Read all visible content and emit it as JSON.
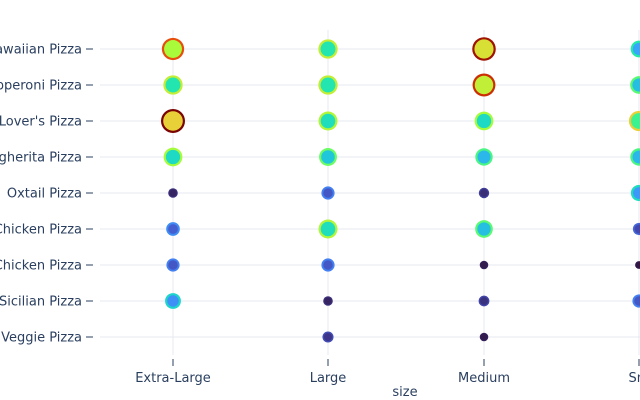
{
  "chart_data": {
    "type": "scatter",
    "xlabel": "size",
    "ylabel": "",
    "title": "",
    "x_categories": [
      "Extra-Large",
      "Large",
      "Medium",
      "Small"
    ],
    "y_tick_labels": [
      "awaiian Pizza",
      "pperoni Pizza",
      "Lover's Pizza",
      "gherita Pizza",
      "Oxtail Pizza",
      "Chicken Pizza",
      "Chicken Pizza",
      "Sicilian Pizza",
      "Veggie Pizza"
    ],
    "x_tick_labels": [
      "Extra-Large",
      "Large",
      "Medium",
      "Sm"
    ],
    "grid": true,
    "legend": "none",
    "points": [
      {
        "row": 0,
        "col": 0,
        "value": 0.82
      },
      {
        "row": 0,
        "col": 1,
        "value": 0.55
      },
      {
        "row": 0,
        "col": 2,
        "value": 0.95
      },
      {
        "row": 0,
        "col": 3,
        "value": 0.35
      },
      {
        "row": 1,
        "col": 0,
        "value": 0.55
      },
      {
        "row": 1,
        "col": 1,
        "value": 0.55
      },
      {
        "row": 1,
        "col": 2,
        "value": 0.88
      },
      {
        "row": 1,
        "col": 3,
        "value": 0.42
      },
      {
        "row": 2,
        "col": 0,
        "value": 1.0
      },
      {
        "row": 2,
        "col": 1,
        "value": 0.52
      },
      {
        "row": 2,
        "col": 2,
        "value": 0.5
      },
      {
        "row": 2,
        "col": 3,
        "value": 0.62
      },
      {
        "row": 3,
        "col": 0,
        "value": 0.5
      },
      {
        "row": 3,
        "col": 1,
        "value": 0.44
      },
      {
        "row": 3,
        "col": 2,
        "value": 0.4
      },
      {
        "row": 3,
        "col": 3,
        "value": 0.4
      },
      {
        "row": 4,
        "col": 0,
        "value": 0.04
      },
      {
        "row": 4,
        "col": 1,
        "value": 0.16
      },
      {
        "row": 4,
        "col": 2,
        "value": 0.06
      },
      {
        "row": 4,
        "col": 3,
        "value": 0.32
      },
      {
        "row": 5,
        "col": 0,
        "value": 0.18
      },
      {
        "row": 5,
        "col": 1,
        "value": 0.52
      },
      {
        "row": 5,
        "col": 2,
        "value": 0.42
      },
      {
        "row": 5,
        "col": 3,
        "value": 0.12
      },
      {
        "row": 6,
        "col": 0,
        "value": 0.16
      },
      {
        "row": 6,
        "col": 1,
        "value": 0.16
      },
      {
        "row": 6,
        "col": 2,
        "value": 0.02
      },
      {
        "row": 6,
        "col": 3,
        "value": 0.01
      },
      {
        "row": 7,
        "col": 0,
        "value": 0.3
      },
      {
        "row": 7,
        "col": 1,
        "value": 0.04
      },
      {
        "row": 7,
        "col": 2,
        "value": 0.07
      },
      {
        "row": 7,
        "col": 3,
        "value": 0.16
      },
      {
        "row": 8,
        "col": 1,
        "value": 0.08
      },
      {
        "row": 8,
        "col": 2,
        "value": 0.02
      }
    ],
    "colors": {
      "background": "#ffffff",
      "gridline": "#e6e9ef",
      "text": "#2a3f5f",
      "colorscale": [
        "#30123b",
        "#4145ab",
        "#4675ed",
        "#39a2fc",
        "#1bcfd4",
        "#24eca6",
        "#61fc6c",
        "#a4fc3b",
        "#d1e834",
        "#f3c63a",
        "#fe9b2d",
        "#f36315",
        "#d93806",
        "#b11901",
        "#7a0402"
      ]
    }
  }
}
